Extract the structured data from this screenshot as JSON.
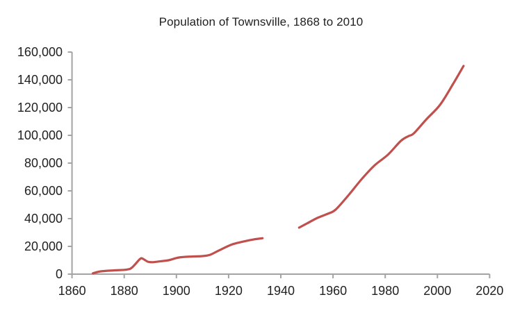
{
  "page": {
    "background_color": "#ffffff"
  },
  "chart_data": {
    "type": "line",
    "title": "Population of Townsville, 1868 to 2010",
    "xlabel": "",
    "ylabel": "",
    "xlim": [
      1860,
      2020
    ],
    "ylim": [
      0,
      160000
    ],
    "grid": false,
    "legend": null,
    "axis_color": "#a3a3a3",
    "text_color": "#1f1f1f",
    "x_ticks": [
      1860,
      1880,
      1900,
      1920,
      1940,
      1960,
      1980,
      2000,
      2020
    ],
    "x_tick_labels": [
      "1860",
      "1880",
      "1900",
      "1920",
      "1940",
      "1960",
      "1980",
      "2000",
      "2020"
    ],
    "y_ticks": [
      0,
      20000,
      40000,
      60000,
      80000,
      100000,
      120000,
      140000,
      160000
    ],
    "y_tick_labels": [
      "0",
      "20,000",
      "40,000",
      "60,000",
      "80,000",
      "100,000",
      "120,000",
      "140,000",
      "160,000"
    ],
    "series": [
      {
        "name": "Population",
        "color": "#C0504D",
        "gap_years": [
          1933,
          1947
        ],
        "segments": [
          [
            [
              1868,
              600
            ],
            [
              1871,
              2000
            ],
            [
              1876,
              2700
            ],
            [
              1881,
              3300
            ],
            [
              1883,
              4800
            ],
            [
              1886,
              10800
            ],
            [
              1887,
              11200
            ],
            [
              1889,
              9000
            ],
            [
              1891,
              8600
            ],
            [
              1894,
              9300
            ],
            [
              1897,
              10000
            ],
            [
              1901,
              12000
            ],
            [
              1906,
              12700
            ],
            [
              1910,
              13000
            ],
            [
              1913,
              14000
            ],
            [
              1916,
              16800
            ],
            [
              1921,
              21200
            ],
            [
              1925,
              23200
            ],
            [
              1929,
              24800
            ],
            [
              1933,
              25900
            ]
          ],
          [
            [
              1947,
              33500
            ],
            [
              1950,
              36500
            ],
            [
              1954,
              40500
            ],
            [
              1958,
              43500
            ],
            [
              1961,
              46500
            ],
            [
              1966,
              57000
            ],
            [
              1971,
              68500
            ],
            [
              1976,
              78500
            ],
            [
              1981,
              86000
            ],
            [
              1986,
              96000
            ],
            [
              1989,
              99500
            ],
            [
              1991,
              101500
            ],
            [
              1996,
              112000
            ],
            [
              2001,
              122000
            ],
            [
              2006,
              137000
            ],
            [
              2010,
              150000
            ]
          ]
        ]
      }
    ]
  }
}
